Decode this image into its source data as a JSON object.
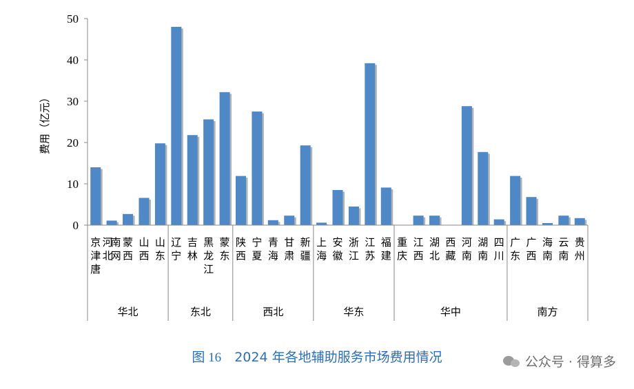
{
  "caption": {
    "figure_no": "图 16",
    "title": "2024 年各地辅助服务市场费用情况"
  },
  "watermark": {
    "text": "公众号 · 得算多",
    "icon": "wechat-icon"
  },
  "chart_data": {
    "type": "bar",
    "ylabel": "费用（亿元）",
    "ylim": [
      0,
      50
    ],
    "yticks": [
      "0",
      "10",
      "20",
      "30",
      "40",
      "50"
    ],
    "grid": false,
    "bar_color": "#4f88c6",
    "bar_shadow_color": "#9a9a9a",
    "categories": [
      "京津唐",
      "河北南网",
      "蒙西",
      "山西",
      "山东",
      "辽宁",
      "吉林",
      "黑龙江",
      "蒙东",
      "陕西",
      "宁夏",
      "青海",
      "甘肃",
      "新疆",
      "上海",
      "安徽",
      "浙江",
      "江苏",
      "福建",
      "重庆",
      "江西",
      "湖北",
      "西藏",
      "河南",
      "湖南",
      "四川",
      "广东",
      "广西",
      "海南",
      "云南",
      "贵州"
    ],
    "values": [
      14,
      1.1,
      2.7,
      6.6,
      19.8,
      48,
      21.8,
      25.6,
      32.2,
      11.9,
      27.5,
      1.2,
      2.3,
      19.3,
      0.6,
      8.5,
      4.5,
      39.2,
      9.1,
      0,
      2.3,
      2.3,
      0,
      28.8,
      17.7,
      1.4,
      11.9,
      6.8,
      0.5,
      2.3,
      1.7
    ],
    "groups": [
      {
        "name": "华北",
        "count": 5
      },
      {
        "name": "东北",
        "count": 4
      },
      {
        "name": "西北",
        "count": 5
      },
      {
        "name": "华东",
        "count": 5
      },
      {
        "name": "华中",
        "count": 7
      },
      {
        "name": "南方",
        "count": 5
      }
    ]
  }
}
